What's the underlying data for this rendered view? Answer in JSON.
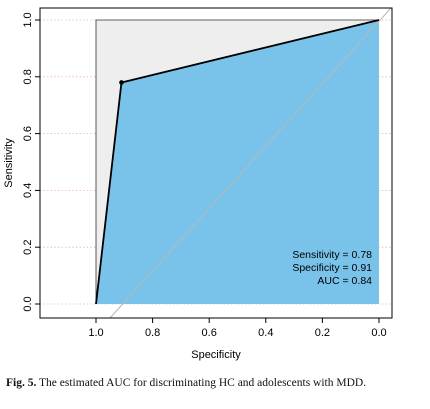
{
  "chart_data": {
    "type": "line",
    "title": "",
    "xlabel": "Specificity",
    "ylabel": "Sensitivity",
    "x_reversed": true,
    "xlim": [
      1.0,
      0.0
    ],
    "ylim": [
      0.0,
      1.0
    ],
    "x_ticks": [
      "1.0",
      "0.8",
      "0.6",
      "0.4",
      "0.2",
      "0.0"
    ],
    "y_ticks": [
      "0.0",
      "0.2",
      "0.4",
      "0.6",
      "0.8",
      "1.0"
    ],
    "grid": "horizontal dotted",
    "series": [
      {
        "x": [
          1.0,
          0.91,
          0.0
        ],
        "y": [
          0.0,
          0.78,
          1.0
        ]
      }
    ],
    "threshold_point": {
      "x": 0.91,
      "y": 0.78
    },
    "annotations": [
      "Sensitivity = 0.78",
      "Specificity = 0.91",
      "AUC = 0.84"
    ],
    "colors": {
      "auc_fill": "#79c2ea",
      "upper_fill": "#eeeeee",
      "grid": "#e8a0a8",
      "diagonal": "#b8b8b8",
      "curve": "#000000"
    }
  },
  "caption": {
    "label": "Fig. 5.",
    "text": "The estimated AUC for discriminating HC and adolescents with MDD."
  }
}
